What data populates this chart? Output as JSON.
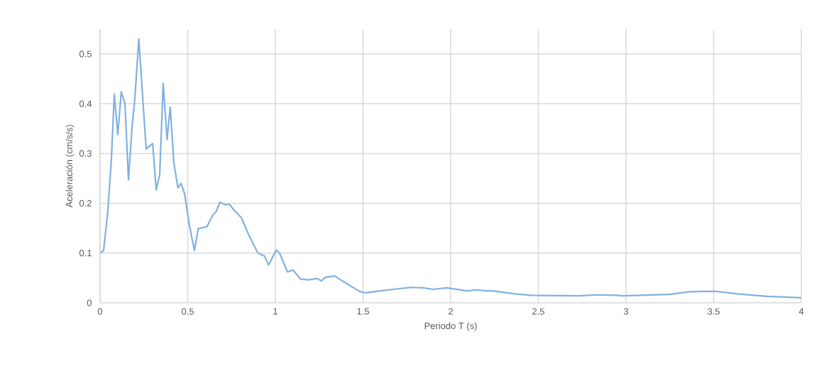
{
  "chart_data": {
    "type": "line",
    "xlabel": "Periodo T (s)",
    "ylabel": "Aceleración (cm/s/s)",
    "xlim": [
      0,
      4
    ],
    "ylim": [
      0,
      0.55
    ],
    "xticks": [
      0,
      0.5,
      1,
      1.5,
      2,
      2.5,
      3,
      3.5,
      4
    ],
    "yticks": [
      0,
      0.1,
      0.2,
      0.3,
      0.4,
      0.5
    ],
    "grid": true,
    "marker": "none",
    "line_style": "solid",
    "series": [
      {
        "color": "#80b1e0",
        "x": [
          0,
          0.02,
          0.043,
          0.064,
          0.081,
          0.101,
          0.121,
          0.142,
          0.162,
          0.182,
          0.198,
          0.221,
          0.242,
          0.263,
          0.3,
          0.32,
          0.34,
          0.36,
          0.382,
          0.4,
          0.421,
          0.444,
          0.462,
          0.482,
          0.509,
          0.538,
          0.56,
          0.61,
          0.644,
          0.66,
          0.684,
          0.715,
          0.738,
          0.762,
          0.779,
          0.806,
          0.846,
          0.9,
          0.938,
          0.961,
          1.005,
          1.024,
          1.069,
          1.1,
          1.143,
          1.19,
          1.238,
          1.262,
          1.285,
          1.339,
          1.386,
          1.48,
          1.514,
          1.575,
          1.67,
          1.777,
          1.845,
          1.9,
          1.978,
          2.091,
          2.147,
          2.204,
          2.239,
          2.366,
          2.457,
          2.733,
          2.832,
          2.945,
          2.98,
          3.248,
          3.353,
          3.438,
          3.516,
          3.636,
          3.805,
          4.0
        ],
        "values": [
          0.1,
          0.105,
          0.18,
          0.285,
          0.419,
          0.338,
          0.424,
          0.4,
          0.247,
          0.352,
          0.409,
          0.53,
          0.418,
          0.309,
          0.32,
          0.227,
          0.257,
          0.441,
          0.328,
          0.393,
          0.281,
          0.231,
          0.24,
          0.219,
          0.157,
          0.105,
          0.149,
          0.153,
          0.177,
          0.182,
          0.202,
          0.197,
          0.198,
          0.187,
          0.181,
          0.171,
          0.138,
          0.1,
          0.094,
          0.076,
          0.106,
          0.1,
          0.062,
          0.066,
          0.048,
          0.046,
          0.049,
          0.044,
          0.051,
          0.054,
          0.043,
          0.023,
          0.02,
          0.023,
          0.027,
          0.031,
          0.03,
          0.027,
          0.03,
          0.024,
          0.026,
          0.024,
          0.024,
          0.018,
          0.015,
          0.014,
          0.016,
          0.015,
          0.014,
          0.017,
          0.022,
          0.023,
          0.023,
          0.018,
          0.013,
          0.01
        ]
      }
    ]
  }
}
